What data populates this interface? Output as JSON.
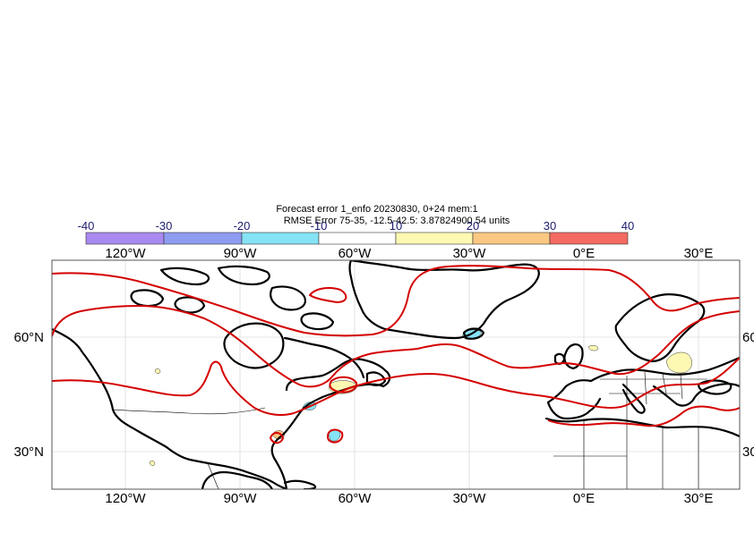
{
  "title": {
    "line1": "Forecast error  1_enfo 20230830, 0+24 mem:1",
    "line2": "RMSE Error 75-35, -12.5-42.5: 3.87824900 54 units"
  },
  "colorbar": {
    "ticks": [
      "-40",
      "-30",
      "-20",
      "-10",
      "10",
      "20",
      "30",
      "40"
    ],
    "colors": [
      "#a98af0",
      "#8e9cf2",
      "#86e2f5",
      "#ffffff",
      "#fdf9b3",
      "#fbc883",
      "#f46b62"
    ]
  },
  "map": {
    "lon_labels": [
      "120°W",
      "90°W",
      "60°W",
      "30°W",
      "0°E",
      "30°E"
    ],
    "lat_labels": [
      "60°N",
      "30°N"
    ],
    "right_lat_labels": [
      "60",
      "30"
    ],
    "contour_color": "#d40000",
    "positive_color": "#fdf9b3",
    "negative_color": "#86e2f5"
  }
}
